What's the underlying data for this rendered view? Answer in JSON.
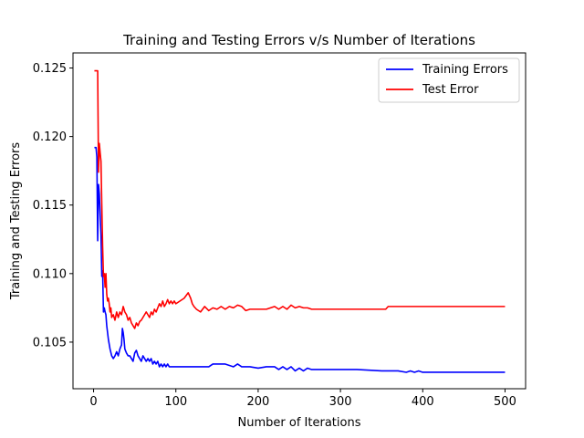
{
  "chart_data": {
    "type": "line",
    "title": "Training and Testing Errors v/s Number of Iterations",
    "xlabel": "Number of Iterations",
    "ylabel": "Training and Testing Errors",
    "xlim": [
      -25,
      525
    ],
    "ylim": [
      0.1016,
      0.1261
    ],
    "xticks": [
      0,
      100,
      200,
      300,
      400,
      500
    ],
    "yticks": [
      0.105,
      0.11,
      0.115,
      0.12,
      0.125
    ],
    "ytick_labels": [
      "0.105",
      "0.110",
      "0.115",
      "0.120",
      "0.125"
    ],
    "grid": false,
    "legend_position": "top-right",
    "series": [
      {
        "name": "Training Errors",
        "color": "#0000ff",
        "x": [
          1,
          3,
          4,
          5,
          6,
          7,
          8,
          9,
          10,
          11,
          12,
          13,
          14,
          15,
          16,
          18,
          20,
          22,
          24,
          26,
          28,
          30,
          32,
          34,
          35,
          36,
          37,
          38,
          40,
          42,
          44,
          46,
          48,
          50,
          52,
          54,
          56,
          58,
          60,
          62,
          64,
          66,
          68,
          70,
          72,
          74,
          76,
          78,
          80,
          82,
          84,
          86,
          88,
          90,
          92,
          94,
          100,
          110,
          120,
          130,
          140,
          145,
          150,
          160,
          170,
          175,
          180,
          190,
          200,
          210,
          220,
          225,
          230,
          235,
          240,
          245,
          250,
          255,
          260,
          265,
          270,
          280,
          300,
          320,
          350,
          370,
          380,
          385,
          390,
          395,
          400,
          410,
          420,
          450,
          480,
          500
        ],
        "y": [
          0.1192,
          0.1192,
          0.1185,
          0.1124,
          0.1165,
          0.1158,
          0.1143,
          0.1128,
          0.1098,
          0.1102,
          0.1072,
          0.1075,
          0.1072,
          0.107,
          0.1062,
          0.1052,
          0.1045,
          0.104,
          0.1038,
          0.104,
          0.1043,
          0.104,
          0.1045,
          0.1048,
          0.106,
          0.1057,
          0.1052,
          0.1045,
          0.1042,
          0.104,
          0.104,
          0.1038,
          0.1036,
          0.1042,
          0.1044,
          0.104,
          0.1038,
          0.1036,
          0.104,
          0.1038,
          0.1036,
          0.1038,
          0.1036,
          0.1038,
          0.1034,
          0.1036,
          0.1034,
          0.1036,
          0.1032,
          0.1034,
          0.1032,
          0.1034,
          0.1032,
          0.1034,
          0.1032,
          0.1032,
          0.1032,
          0.1032,
          0.1032,
          0.1032,
          0.1032,
          0.1034,
          0.1034,
          0.1034,
          0.1032,
          0.1034,
          0.1032,
          0.1032,
          0.1031,
          0.1032,
          0.1032,
          0.103,
          0.1032,
          0.103,
          0.1032,
          0.1029,
          0.1031,
          0.1029,
          0.1031,
          0.103,
          0.103,
          0.103,
          0.103,
          0.103,
          0.1029,
          0.1029,
          0.1028,
          0.1029,
          0.1028,
          0.1029,
          0.1028,
          0.1028,
          0.1028,
          0.1028,
          0.1028,
          0.1028
        ]
      },
      {
        "name": "Test Error",
        "color": "#ff0000",
        "x": [
          1,
          2,
          3,
          4,
          5,
          6,
          7,
          8,
          9,
          10,
          11,
          12,
          13,
          14,
          15,
          16,
          17,
          18,
          19,
          20,
          21,
          22,
          24,
          26,
          28,
          30,
          32,
          34,
          36,
          38,
          40,
          42,
          44,
          46,
          48,
          50,
          52,
          54,
          56,
          58,
          60,
          62,
          64,
          66,
          68,
          70,
          72,
          74,
          76,
          78,
          80,
          82,
          84,
          86,
          88,
          90,
          92,
          94,
          96,
          98,
          100,
          105,
          110,
          115,
          118,
          120,
          122,
          125,
          130,
          135,
          140,
          145,
          150,
          155,
          160,
          165,
          170,
          175,
          180,
          185,
          190,
          195,
          200,
          210,
          220,
          225,
          230,
          235,
          240,
          245,
          250,
          255,
          260,
          265,
          270,
          280,
          300,
          320,
          340,
          355,
          358,
          360,
          380,
          400,
          450,
          500
        ],
        "y": [
          0.1248,
          0.1248,
          0.1248,
          0.1248,
          0.1248,
          0.1174,
          0.1195,
          0.1188,
          0.1182,
          0.115,
          0.112,
          0.1098,
          0.11,
          0.109,
          0.11,
          0.1085,
          0.108,
          0.1082,
          0.1078,
          0.1072,
          0.1075,
          0.1068,
          0.107,
          0.1066,
          0.1072,
          0.1068,
          0.1072,
          0.107,
          0.1076,
          0.1072,
          0.107,
          0.1066,
          0.1068,
          0.1064,
          0.1062,
          0.106,
          0.1064,
          0.1062,
          0.1065,
          0.1066,
          0.1068,
          0.107,
          0.1072,
          0.107,
          0.1068,
          0.1072,
          0.107,
          0.1074,
          0.1072,
          0.1075,
          0.1078,
          0.1076,
          0.108,
          0.1076,
          0.1078,
          0.1081,
          0.1078,
          0.108,
          0.1078,
          0.108,
          0.1078,
          0.108,
          0.1082,
          0.1086,
          0.1082,
          0.1078,
          0.1076,
          0.1074,
          0.1072,
          0.1076,
          0.1073,
          0.1075,
          0.1074,
          0.1076,
          0.1074,
          0.1076,
          0.1075,
          0.1077,
          0.1076,
          0.1073,
          0.1074,
          0.1074,
          0.1074,
          0.1074,
          0.1076,
          0.1074,
          0.1076,
          0.1074,
          0.1077,
          0.1075,
          0.1076,
          0.1075,
          0.1075,
          0.1074,
          0.1074,
          0.1074,
          0.1074,
          0.1074,
          0.1074,
          0.1074,
          0.1076,
          0.1076,
          0.1076,
          0.1076,
          0.1076,
          0.1076
        ]
      }
    ]
  }
}
